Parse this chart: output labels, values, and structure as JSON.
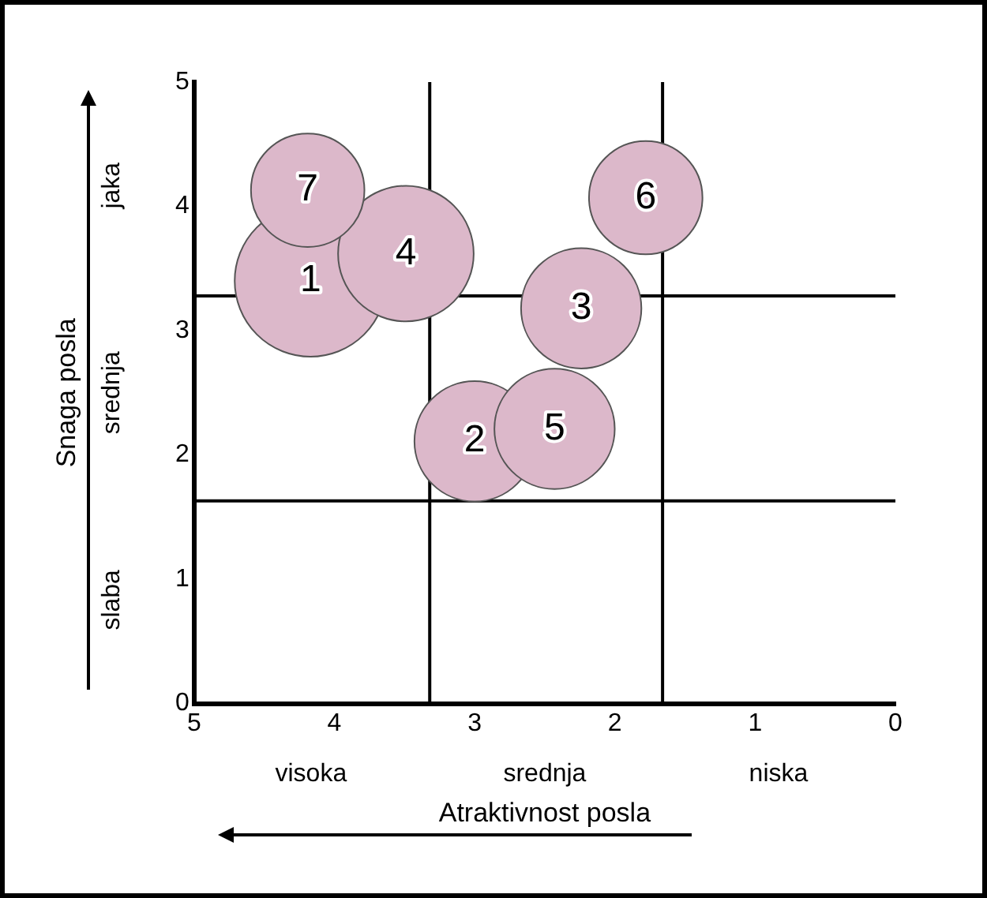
{
  "chart_data": {
    "type": "bubble",
    "xlabel": "Atraktivnost posla",
    "ylabel": "Snaga posla",
    "x": [
      4.17,
      3.0,
      2.24,
      3.49,
      2.43,
      1.78,
      4.19
    ],
    "values": [
      3.4,
      2.11,
      3.18,
      3.62,
      2.21,
      4.07,
      4.13
    ],
    "sizes": [
      1,
      0.63,
      0.63,
      0.8,
      0.63,
      0.56,
      0.56
    ],
    "color": "#dcb8ca",
    "xlim": [
      5,
      0
    ],
    "xticks": [
      5,
      4,
      3,
      2,
      1,
      0
    ],
    "ylim": [
      0,
      5
    ],
    "yticks": [
      0,
      1,
      2,
      3,
      4,
      5
    ],
    "grid": false,
    "ref_lines": [
      {
        "axis": "x",
        "value": 3.32,
        "color": "#000000"
      },
      {
        "axis": "x",
        "value": 1.66,
        "color": "#000000"
      },
      {
        "axis": "y",
        "value": 3.28,
        "color": "#000000"
      },
      {
        "axis": "y",
        "value": 1.63,
        "color": "#000000"
      }
    ],
    "annotations": [
      "visoka",
      "srednja",
      "niska",
      "slaba",
      "srednja",
      "jaka",
      {
        "text": "1",
        "x": 4.17,
        "y": 3.4
      },
      {
        "text": "2",
        "x": 3.0,
        "y": 2.11
      },
      {
        "text": "3",
        "x": 2.24,
        "y": 3.18
      },
      {
        "text": "4",
        "x": 3.49,
        "y": 3.62
      },
      {
        "text": "5",
        "x": 2.43,
        "y": 2.21
      },
      {
        "text": "6",
        "x": 1.78,
        "y": 4.07
      },
      {
        "text": "7",
        "x": 4.19,
        "y": 4.13
      }
    ]
  }
}
